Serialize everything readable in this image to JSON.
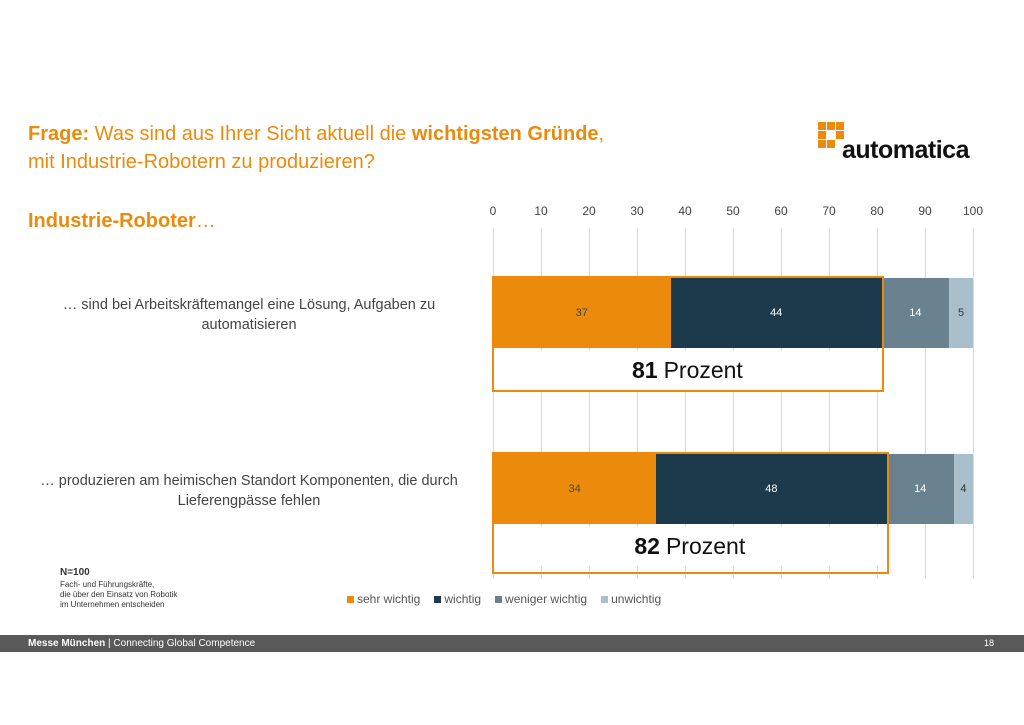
{
  "question": {
    "prefix": "Frage:",
    "text1": " Was sind aus Ihrer Sicht aktuell die ",
    "highlight": "wichtigsten Gründe",
    "text2": ",",
    "line2": "mit Industrie-Robotern zu produzieren?"
  },
  "subtitle": {
    "bold": "Industrie-Roboter",
    "rest": "…"
  },
  "logo": {
    "text": "automatica",
    "color": "#ec8a0c"
  },
  "chart_data": {
    "type": "bar",
    "orientation": "horizontal-stacked",
    "xlim": [
      0,
      100
    ],
    "ticks": [
      "0",
      "10",
      "20",
      "30",
      "40",
      "50",
      "60",
      "70",
      "80",
      "90",
      "100"
    ],
    "grid": true,
    "legend_position": "bottom",
    "categories": [
      "… sind bei Arbeitskräftemangel eine Lösung, Aufgaben zu automatisieren",
      "… produzieren am heimischen Standort Komponenten, die durch Lieferengpässe fehlen"
    ],
    "series": [
      {
        "name": "sehr wichtig",
        "color": "#ec8a0c",
        "values": [
          37,
          34
        ]
      },
      {
        "name": "wichtig",
        "color": "#1b3a4b",
        "values": [
          44,
          48
        ]
      },
      {
        "name": "weniger wichtig",
        "color": "#6a8290",
        "values": [
          14,
          14
        ]
      },
      {
        "name": "unwichtig",
        "color": "#a9bfcc",
        "values": [
          5,
          4
        ]
      }
    ],
    "totals": [
      {
        "value": "81",
        "unit": "Prozent"
      },
      {
        "value": "82",
        "unit": "Prozent"
      }
    ]
  },
  "note": {
    "n": "N=100",
    "lines": [
      "Fach- und Führungskräfte,",
      "die über den Einsatz von Robotik",
      "im Unternehmen entscheiden"
    ]
  },
  "footer": {
    "brand": "Messe München",
    "sep": " | ",
    "tagline": "Connecting Global Competence",
    "page": "18"
  }
}
